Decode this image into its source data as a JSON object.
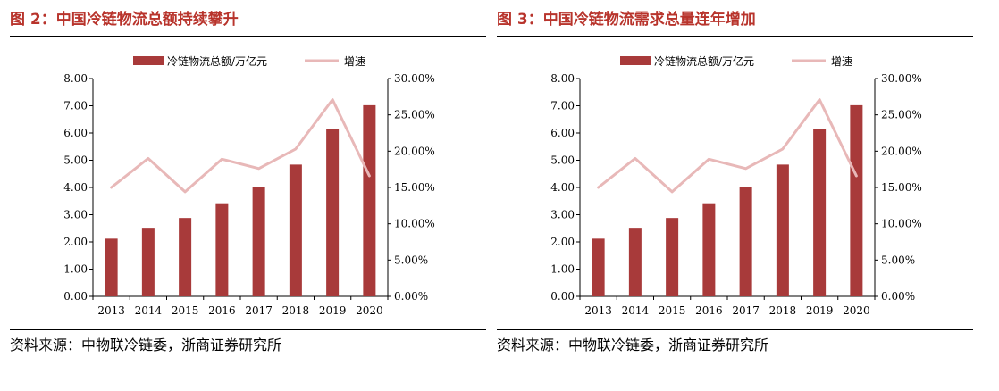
{
  "panels": [
    {
      "title": "图 2：中国冷链物流总额持续攀升",
      "source": "资料来源：中物联冷链委，浙商证券研究所"
    },
    {
      "title": "图 3：中国冷链物流需求总量连年增加",
      "source": "资料来源：中物联冷链委，浙商证券研究所"
    }
  ],
  "chart_data": [
    {
      "type": "bar",
      "title": "",
      "categories": [
        "2013",
        "2014",
        "2015",
        "2016",
        "2017",
        "2018",
        "2019",
        "2020"
      ],
      "series": [
        {
          "name": "冷链物流总额/万亿元",
          "type": "bar",
          "axis": "left",
          "values": [
            2.12,
            2.52,
            2.88,
            3.42,
            4.03,
            4.84,
            6.15,
            7.02
          ],
          "color": "#a83a3a"
        },
        {
          "name": "增速",
          "type": "line",
          "axis": "right",
          "values": [
            15.0,
            19.0,
            14.4,
            18.9,
            17.6,
            20.3,
            27.1,
            16.6
          ],
          "color": "#e8b8b8"
        }
      ],
      "left_axis": {
        "ylim": [
          0,
          8
        ],
        "ticks": [
          "0.00",
          "1.00",
          "2.00",
          "3.00",
          "4.00",
          "5.00",
          "6.00",
          "7.00",
          "8.00"
        ]
      },
      "right_axis": {
        "ylim": [
          0,
          30
        ],
        "ticks": [
          "0.00%",
          "5.00%",
          "10.00%",
          "15.00%",
          "20.00%",
          "25.00%",
          "30.00%"
        ]
      },
      "legend_position": "top-center",
      "grid": false
    },
    {
      "type": "bar",
      "title": "",
      "categories": [
        "2013",
        "2014",
        "2015",
        "2016",
        "2017",
        "2018",
        "2019",
        "2020"
      ],
      "series": [
        {
          "name": "冷链物流总额/万亿元",
          "type": "bar",
          "axis": "left",
          "values": [
            2.12,
            2.52,
            2.88,
            3.42,
            4.03,
            4.84,
            6.15,
            7.02
          ],
          "color": "#a83a3a"
        },
        {
          "name": "增速",
          "type": "line",
          "axis": "right",
          "values": [
            15.0,
            19.0,
            14.4,
            18.9,
            17.6,
            20.3,
            27.1,
            16.6
          ],
          "color": "#e8b8b8"
        }
      ],
      "left_axis": {
        "ylim": [
          0,
          8
        ],
        "ticks": [
          "0.00",
          "1.00",
          "2.00",
          "3.00",
          "4.00",
          "5.00",
          "6.00",
          "7.00",
          "8.00"
        ]
      },
      "right_axis": {
        "ylim": [
          0,
          30
        ],
        "ticks": [
          "0.00%",
          "5.00%",
          "10.00%",
          "15.00%",
          "20.00%",
          "25.00%",
          "30.00%"
        ]
      },
      "legend_position": "top-center",
      "grid": false
    }
  ]
}
